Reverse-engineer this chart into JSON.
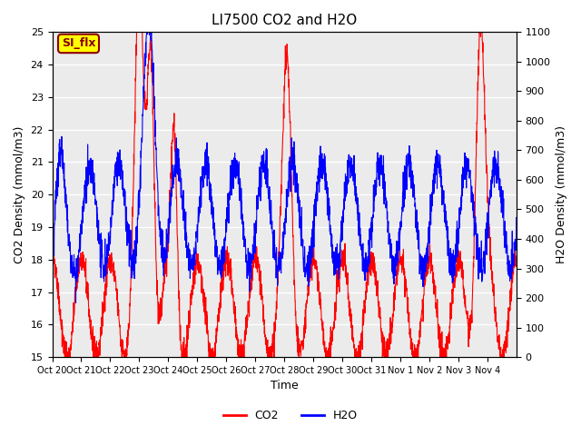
{
  "title": "LI7500 CO2 and H2O",
  "xlabel": "Time",
  "ylabel_left": "CO2 Density (mmol/m3)",
  "ylabel_right": "H2O Density (mmol/m3)",
  "ylim_left": [
    15.0,
    25.0
  ],
  "ylim_right": [
    0,
    1100
  ],
  "co2_color": "#FF0000",
  "h2o_color": "#0000FF",
  "background_color": "#ffffff",
  "annotation_text": "SI_flx",
  "annotation_bg": "#FFFF00",
  "annotation_border": "#8B0000",
  "xtick_labels": [
    "Oct 20",
    "Oct 21",
    "Oct 22",
    "Oct 23",
    "Oct 24",
    "Oct 25",
    "Oct 26",
    "Oct 27",
    "Oct 28",
    "Oct 29",
    "Oct 30",
    "Oct 31",
    "Nov 1",
    "Nov 2",
    "Nov 3",
    "Nov 4"
  ],
  "yticks_left": [
    15.0,
    16.0,
    17.0,
    18.0,
    19.0,
    20.0,
    21.0,
    22.0,
    23.0,
    24.0,
    25.0
  ],
  "yticks_right": [
    0,
    100,
    200,
    300,
    400,
    500,
    600,
    700,
    800,
    900,
    1000,
    1100
  ],
  "legend_co2": "CO2",
  "legend_h2o": "H2O"
}
